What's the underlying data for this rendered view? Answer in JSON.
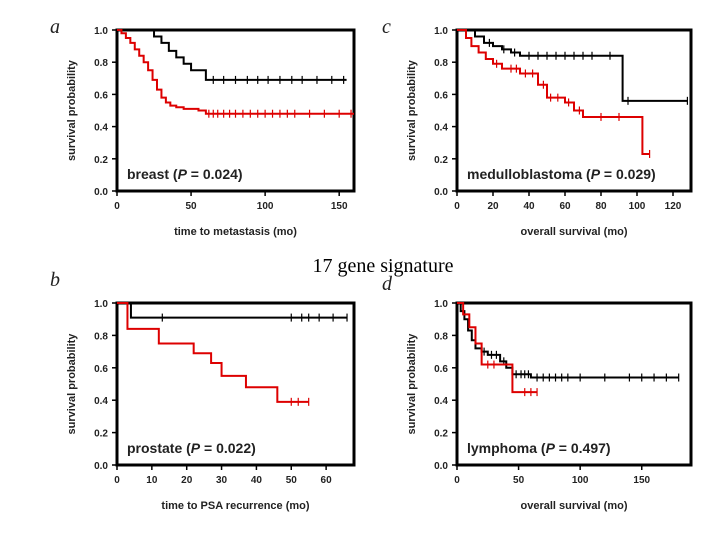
{
  "figure": {
    "center_label": "17 gene signature"
  },
  "chart_data": [
    {
      "type": "line",
      "panel": "a",
      "title": "",
      "xlabel": "time to metastasis (mo)",
      "ylabel": "survival probability",
      "xlim": [
        0,
        160
      ],
      "ylim": [
        0,
        1.0
      ],
      "xticks": [
        0,
        50,
        100,
        150
      ],
      "yticks": [
        0.0,
        0.2,
        0.4,
        0.6,
        0.8,
        1.0
      ],
      "note": {
        "prefix": "breast  (",
        "p": "P",
        "rest": " = 0.024)"
      },
      "series": [
        {
          "name": "black",
          "color": "#000000",
          "x": [
            0,
            25,
            30,
            35,
            40,
            45,
            50,
            60,
            155
          ],
          "y": [
            1.0,
            0.96,
            0.92,
            0.87,
            0.83,
            0.79,
            0.75,
            0.69,
            0.69
          ],
          "censor_x": [
            65,
            72,
            80,
            88,
            95,
            102,
            110,
            118,
            125,
            135,
            145,
            153
          ]
        },
        {
          "name": "red",
          "color": "#dd0000",
          "x": [
            0,
            3,
            6,
            9,
            12,
            15,
            18,
            21,
            24,
            27,
            30,
            33,
            36,
            40,
            45,
            55,
            60,
            160
          ],
          "y": [
            1.0,
            0.98,
            0.95,
            0.92,
            0.88,
            0.84,
            0.8,
            0.75,
            0.69,
            0.63,
            0.58,
            0.55,
            0.53,
            0.52,
            0.51,
            0.5,
            0.48,
            0.48
          ],
          "censor_x": [
            62,
            65,
            68,
            72,
            76,
            80,
            85,
            90,
            95,
            100,
            105,
            110,
            115,
            120,
            130,
            140,
            150,
            158
          ]
        }
      ]
    },
    {
      "type": "line",
      "panel": "c",
      "title": "",
      "xlabel": "overall survival (mo)",
      "ylabel": "survival probability",
      "xlim": [
        0,
        130
      ],
      "ylim": [
        0,
        1.0
      ],
      "xticks": [
        0,
        20,
        40,
        60,
        80,
        100,
        120
      ],
      "yticks": [
        0.0,
        0.2,
        0.4,
        0.6,
        0.8,
        1.0
      ],
      "note": {
        "prefix": "medulloblastoma  (",
        "p": "P",
        "rest": " = 0.029)"
      },
      "series": [
        {
          "name": "black",
          "color": "#000000",
          "x": [
            0,
            10,
            15,
            20,
            25,
            30,
            35,
            92,
            128
          ],
          "y": [
            1.0,
            0.96,
            0.92,
            0.9,
            0.88,
            0.86,
            0.84,
            0.56,
            0.56
          ],
          "censor_x": [
            18,
            26,
            32,
            40,
            45,
            50,
            55,
            60,
            65,
            70,
            75,
            85,
            95,
            128
          ]
        },
        {
          "name": "red",
          "color": "#dd0000",
          "x": [
            0,
            5,
            8,
            12,
            16,
            20,
            25,
            35,
            45,
            50,
            60,
            65,
            70,
            100,
            103,
            107
          ],
          "y": [
            1.0,
            0.95,
            0.9,
            0.86,
            0.82,
            0.79,
            0.76,
            0.73,
            0.66,
            0.58,
            0.55,
            0.5,
            0.46,
            0.46,
            0.23,
            0.23
          ],
          "censor_x": [
            22,
            30,
            33,
            38,
            42,
            48,
            52,
            56,
            62,
            68,
            80,
            90,
            107
          ]
        }
      ]
    },
    {
      "type": "line",
      "panel": "b",
      "title": "",
      "xlabel": "time to PSA recurrence (mo)",
      "ylabel": "survival probability",
      "xlim": [
        0,
        68
      ],
      "ylim": [
        0,
        1.0
      ],
      "xticks": [
        0,
        10,
        20,
        30,
        40,
        50,
        60
      ],
      "yticks": [
        0.0,
        0.2,
        0.4,
        0.6,
        0.8,
        1.0
      ],
      "note": {
        "prefix": "prostate  (",
        "p": "P",
        "rest": " = 0.022)"
      },
      "series": [
        {
          "name": "black",
          "color": "#000000",
          "x": [
            0,
            4,
            66
          ],
          "y": [
            1.0,
            0.91,
            0.91
          ],
          "censor_x": [
            13,
            50,
            53,
            55,
            58,
            62,
            66
          ]
        },
        {
          "name": "red",
          "color": "#dd0000",
          "x": [
            0,
            3,
            12,
            22,
            27,
            30,
            37,
            46,
            55
          ],
          "y": [
            1.0,
            0.84,
            0.75,
            0.69,
            0.63,
            0.55,
            0.48,
            0.39,
            0.39
          ],
          "censor_x": [
            50,
            52,
            55
          ]
        }
      ]
    },
    {
      "type": "line",
      "panel": "d",
      "title": "",
      "xlabel": "overall survival (mo)",
      "ylabel": "survival probability",
      "xlim": [
        0,
        190
      ],
      "ylim": [
        0,
        1.0
      ],
      "xticks": [
        0,
        50,
        100,
        150
      ],
      "yticks": [
        0.0,
        0.2,
        0.4,
        0.6,
        0.8,
        1.0
      ],
      "note": {
        "prefix": "lymphoma  (",
        "p": "P",
        "rest": " = 0.497)"
      },
      "series": [
        {
          "name": "black",
          "color": "#000000",
          "x": [
            0,
            3,
            6,
            9,
            12,
            15,
            20,
            25,
            35,
            40,
            45,
            60,
            180
          ],
          "y": [
            1.0,
            0.95,
            0.9,
            0.83,
            0.77,
            0.72,
            0.7,
            0.68,
            0.64,
            0.6,
            0.56,
            0.54,
            0.54
          ],
          "censor_x": [
            22,
            28,
            32,
            38,
            48,
            52,
            55,
            58,
            65,
            70,
            75,
            80,
            85,
            90,
            100,
            120,
            140,
            150,
            160,
            170,
            180
          ]
        },
        {
          "name": "red",
          "color": "#dd0000",
          "x": [
            0,
            5,
            10,
            15,
            20,
            40,
            45,
            65
          ],
          "y": [
            1.0,
            0.93,
            0.85,
            0.75,
            0.62,
            0.62,
            0.45,
            0.45
          ],
          "censor_x": [
            25,
            30,
            55,
            60,
            65
          ]
        }
      ]
    }
  ]
}
